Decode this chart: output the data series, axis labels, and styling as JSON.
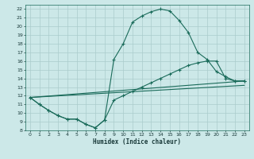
{
  "xlabel": "Humidex (Indice chaleur)",
  "bg_color": "#cce8e8",
  "grid_color": "#aacccc",
  "line_color": "#1a6b5a",
  "xlim": [
    -0.5,
    23.5
  ],
  "ylim": [
    8,
    22.5
  ],
  "xticks": [
    0,
    1,
    2,
    3,
    4,
    5,
    6,
    7,
    8,
    9,
    10,
    11,
    12,
    13,
    14,
    15,
    16,
    17,
    18,
    19,
    20,
    21,
    22,
    23
  ],
  "yticks": [
    8,
    9,
    10,
    11,
    12,
    13,
    14,
    15,
    16,
    17,
    18,
    19,
    20,
    21,
    22
  ],
  "line1_x": [
    0,
    1,
    2,
    3,
    4,
    5,
    6,
    7,
    8,
    9,
    10,
    11,
    12,
    13,
    14,
    15,
    16,
    17,
    18,
    19,
    20,
    21,
    22,
    23
  ],
  "line1_y": [
    11.8,
    11.0,
    10.3,
    9.7,
    9.3,
    9.3,
    8.7,
    8.3,
    9.2,
    16.2,
    18.0,
    20.5,
    21.2,
    21.7,
    22.0,
    21.8,
    20.7,
    19.3,
    17.0,
    16.2,
    14.8,
    14.2,
    13.7,
    13.7
  ],
  "line2_x": [
    0,
    1,
    2,
    3,
    4,
    5,
    6,
    7,
    8,
    9,
    10,
    11,
    12,
    13,
    14,
    15,
    16,
    17,
    18,
    19,
    20,
    21,
    22,
    23
  ],
  "line2_y": [
    11.8,
    11.0,
    10.3,
    9.7,
    9.3,
    9.3,
    8.7,
    8.3,
    9.2,
    11.5,
    12.0,
    12.5,
    13.0,
    13.5,
    14.0,
    14.5,
    15.0,
    15.5,
    15.8,
    16.0,
    16.0,
    14.0,
    13.7,
    13.7
  ],
  "line3_x": [
    0,
    23
  ],
  "line3_y": [
    11.8,
    13.7
  ],
  "line4_x": [
    0,
    23
  ],
  "line4_y": [
    11.8,
    13.2
  ]
}
